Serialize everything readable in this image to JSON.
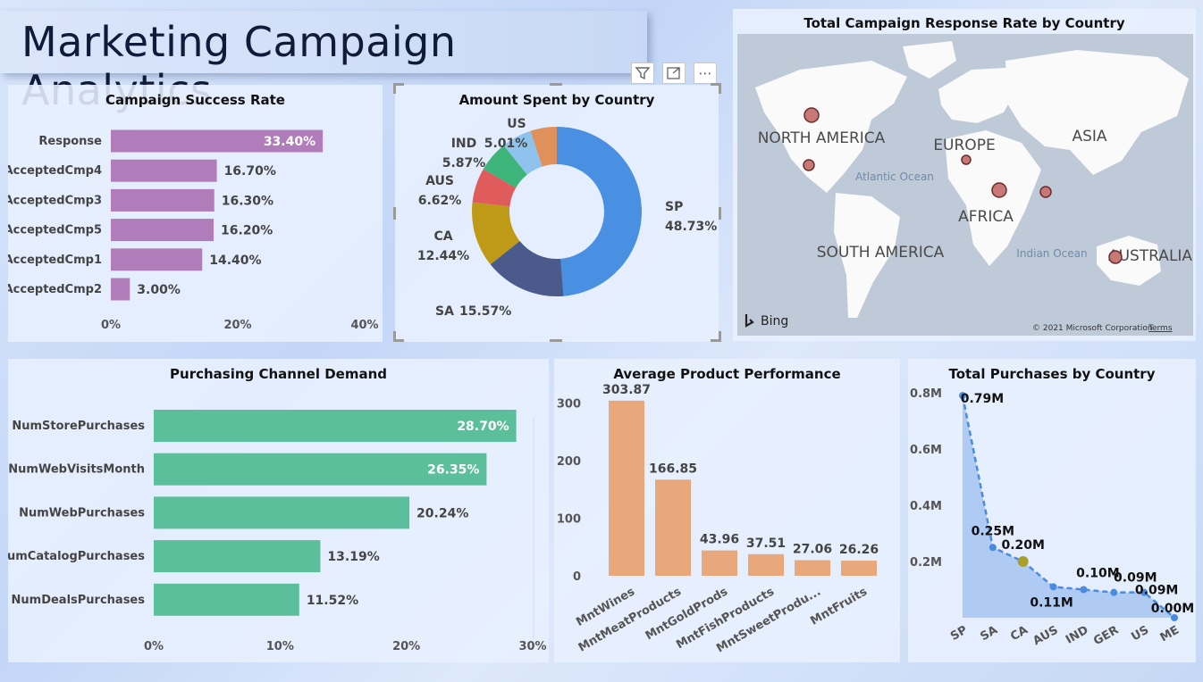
{
  "page": {
    "title": "Marketing Campaign Analytics"
  },
  "toolbar": {
    "filter_icon": "filter-icon",
    "focus_icon": "focus-mode-icon",
    "more_label": "⋯"
  },
  "chart_data": [
    {
      "id": "success",
      "type": "bar",
      "orientation": "horizontal",
      "title": "Campaign Success Rate",
      "categories": [
        "Response",
        "AcceptedCmp4",
        "AcceptedCmp3",
        "AcceptedCmp5",
        "AcceptedCmp1",
        "AcceptedCmp2"
      ],
      "values": [
        33.4,
        16.7,
        16.3,
        16.2,
        14.4,
        3.0
      ],
      "labels": [
        "33.40%",
        "16.70%",
        "16.30%",
        "16.20%",
        "14.40%",
        "3.00%"
      ],
      "xlim": [
        0,
        40
      ],
      "ticks": [
        "0%",
        "20%",
        "40%"
      ],
      "color": "#b07cb9"
    },
    {
      "id": "spent",
      "type": "pie",
      "donut": true,
      "title": "Amount Spent by Country",
      "slices": [
        {
          "label": "SP",
          "value": 48.73,
          "text": "48.73%",
          "color": "#4a90e2"
        },
        {
          "label": "SA",
          "value": 15.57,
          "text": "15.57%",
          "color": "#4a5a8a"
        },
        {
          "label": "CA",
          "value": 12.44,
          "text": "12.44%",
          "color": "#bf9a17"
        },
        {
          "label": "AUS",
          "value": 6.62,
          "text": "6.62%",
          "color": "#e05c5c"
        },
        {
          "label": "IND",
          "value": 5.87,
          "text": "5.87%",
          "color": "#3cb47a"
        },
        {
          "label": "",
          "value": 5.76,
          "text": "",
          "color": "#8fc3ee"
        },
        {
          "label": "US",
          "value": 5.01,
          "text": "5.01%",
          "color": "#e0905a"
        }
      ]
    },
    {
      "id": "map",
      "type": "map",
      "title": "Total Campaign Response Rate by Country",
      "regions": [
        "NORTH AMERICA",
        "EUROPE",
        "ASIA",
        "AFRICA",
        "SOUTH AMERICA",
        "AUSTRALIA"
      ],
      "oceans": [
        "Atlantic Ocean",
        "Indian Ocean"
      ],
      "bing_label": "Bing",
      "copyright": "© 2021 Microsoft Corporation",
      "terms": "Terms"
    },
    {
      "id": "channel",
      "type": "bar",
      "orientation": "horizontal",
      "title": "Purchasing Channel Demand",
      "categories": [
        "NumStorePurchases",
        "NumWebVisitsMonth",
        "NumWebPurchases",
        "NumCatalogPurchases",
        "NumDealsPurchases"
      ],
      "values": [
        28.7,
        26.35,
        20.24,
        13.19,
        11.52
      ],
      "labels": [
        "28.70%",
        "26.35%",
        "20.24%",
        "13.19%",
        "11.52%"
      ],
      "xlim": [
        0,
        30
      ],
      "ticks": [
        "0%",
        "10%",
        "20%",
        "30%"
      ],
      "color": "#5cbf9b"
    },
    {
      "id": "product",
      "type": "bar",
      "title": "Average Product Performance",
      "categories": [
        "MntWines",
        "MntMeatProducts",
        "MntGoldProds",
        "MntFishProducts",
        "MntSweetProdu...",
        "MntFruits"
      ],
      "values": [
        303.87,
        166.85,
        43.96,
        37.51,
        27.06,
        26.26
      ],
      "labels": [
        "303.87",
        "166.85",
        "43.96",
        "37.51",
        "27.06",
        "26.26"
      ],
      "ylim": [
        0,
        330
      ],
      "ticks": [
        "0",
        "100",
        "200",
        "300"
      ],
      "color": "#e9a87c"
    },
    {
      "id": "purchases",
      "type": "area",
      "title": "Total Purchases by Country",
      "categories": [
        "SP",
        "SA",
        "CA",
        "AUS",
        "IND",
        "GER",
        "US",
        "ME"
      ],
      "values": [
        0.79,
        0.25,
        0.2,
        0.11,
        0.1,
        0.09,
        0.09,
        0.0
      ],
      "labels": [
        "0.79M",
        "0.25M",
        "0.20M",
        "0.11M",
        "0.10M",
        "0.09M",
        "0.09M",
        "0.00M"
      ],
      "ylim": [
        0,
        0.8
      ],
      "ticks": [
        "0.2M",
        "0.4M",
        "0.6M",
        "0.8M"
      ],
      "color": "#4a8ae0"
    }
  ]
}
